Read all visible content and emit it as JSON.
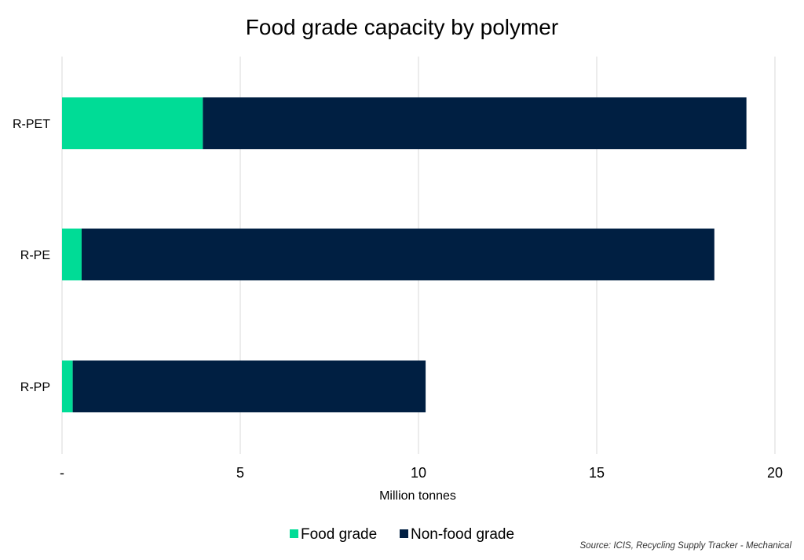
{
  "chart_data": {
    "type": "bar",
    "orientation": "horizontal",
    "stacked": true,
    "title": "Food grade capacity by polymer",
    "xlabel": "Million tonnes",
    "ylabel": "",
    "xlim": [
      0,
      20
    ],
    "x_ticks": [
      0,
      5,
      10,
      15,
      20
    ],
    "x_tick_labels": [
      "-",
      "5",
      "10",
      "15",
      "20"
    ],
    "categories": [
      "R-PET",
      "R-PE",
      "R-PP"
    ],
    "series": [
      {
        "name": "Food grade",
        "color": "#00DC96",
        "values": [
          3.95,
          0.55,
          0.3
        ]
      },
      {
        "name": "Non-food grade",
        "color": "#001F42",
        "values": [
          15.25,
          17.75,
          9.9
        ]
      }
    ],
    "grid": true,
    "legend_position": "bottom",
    "source": "Source: ICIS, Recycling Supply Tracker - Mechanical"
  }
}
